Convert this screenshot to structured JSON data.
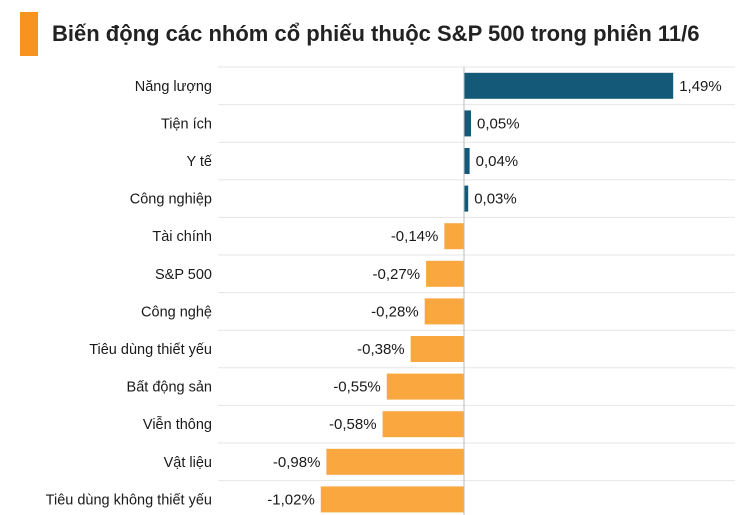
{
  "title": "Biến động các nhóm cổ phiếu thuộc S&P 500 trong phiên 11/6",
  "colors": {
    "accent": "#F7931E",
    "positive": "#145A78",
    "negative": "#F9A73E",
    "grid": "#E6E6E6",
    "axis": "#BBBBBB"
  },
  "chart_data": {
    "type": "bar",
    "orientation": "horizontal",
    "title": "Biến động các nhóm cổ phiếu thuộc S&P 500 trong phiên 11/6",
    "unit": "%",
    "xlim": [
      -1.2,
      1.6
    ],
    "grid": true,
    "categories": [
      "Năng lượng",
      "Tiện ích",
      "Y tế",
      "Công nghiệp",
      "Tài chính",
      "S&P 500",
      "Công nghệ",
      "Tiêu dùng thiết yếu",
      "Bất động sản",
      "Viễn thông",
      "Vật liệu",
      "Tiêu dùng không thiết yếu"
    ],
    "values": [
      1.49,
      0.05,
      0.04,
      0.03,
      -0.14,
      -0.27,
      -0.28,
      -0.38,
      -0.55,
      -0.58,
      -0.98,
      -1.02
    ],
    "labels": [
      "1,49%",
      "0,05%",
      "0,04%",
      "0,03%",
      "-0,14%",
      "-0,27%",
      "-0,28%",
      "-0,38%",
      "-0,55%",
      "-0,58%",
      "-0,98%",
      "-1,02%"
    ]
  }
}
